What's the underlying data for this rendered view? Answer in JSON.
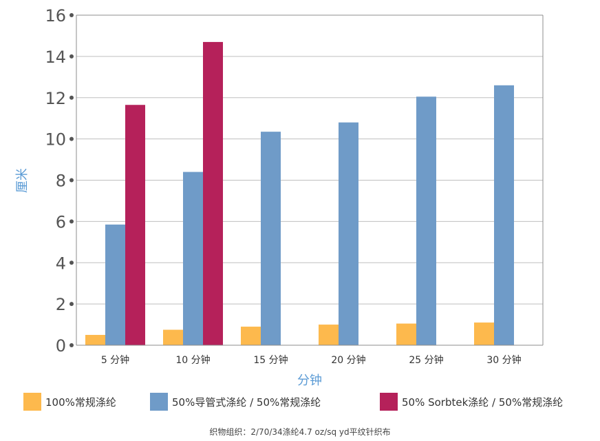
{
  "chart_data": {
    "type": "bar",
    "xlabel": "分钟",
    "ylabel": "厘米",
    "ylim": [
      0,
      16
    ],
    "yticks": [
      0,
      2,
      4,
      6,
      8,
      10,
      12,
      14,
      16
    ],
    "grid": true,
    "legend_position": "bottom",
    "categories": [
      "5 分钟",
      "10 分钟",
      "15 分钟",
      "20 分钟",
      "25 分钟",
      "30 分钟"
    ],
    "series": [
      {
        "name": "100%常规涤纶",
        "color": "#fdb94d",
        "values": [
          0.5,
          0.75,
          0.9,
          1.0,
          1.05,
          1.1
        ]
      },
      {
        "name": "50%导管式涤纶 / 50%常规涤纶",
        "color": "#6f9bc8",
        "values": [
          5.85,
          8.4,
          10.35,
          10.8,
          12.05,
          12.6
        ]
      },
      {
        "name": "50% Sorbtek涤纶 / 50%常规涤纶",
        "color": "#b5215a",
        "values": [
          11.65,
          14.7,
          null,
          null,
          null,
          null
        ]
      }
    ],
    "footnote": "织物组织：2/70/34涤纶4.7 oz/sq yd平纹针织布"
  }
}
